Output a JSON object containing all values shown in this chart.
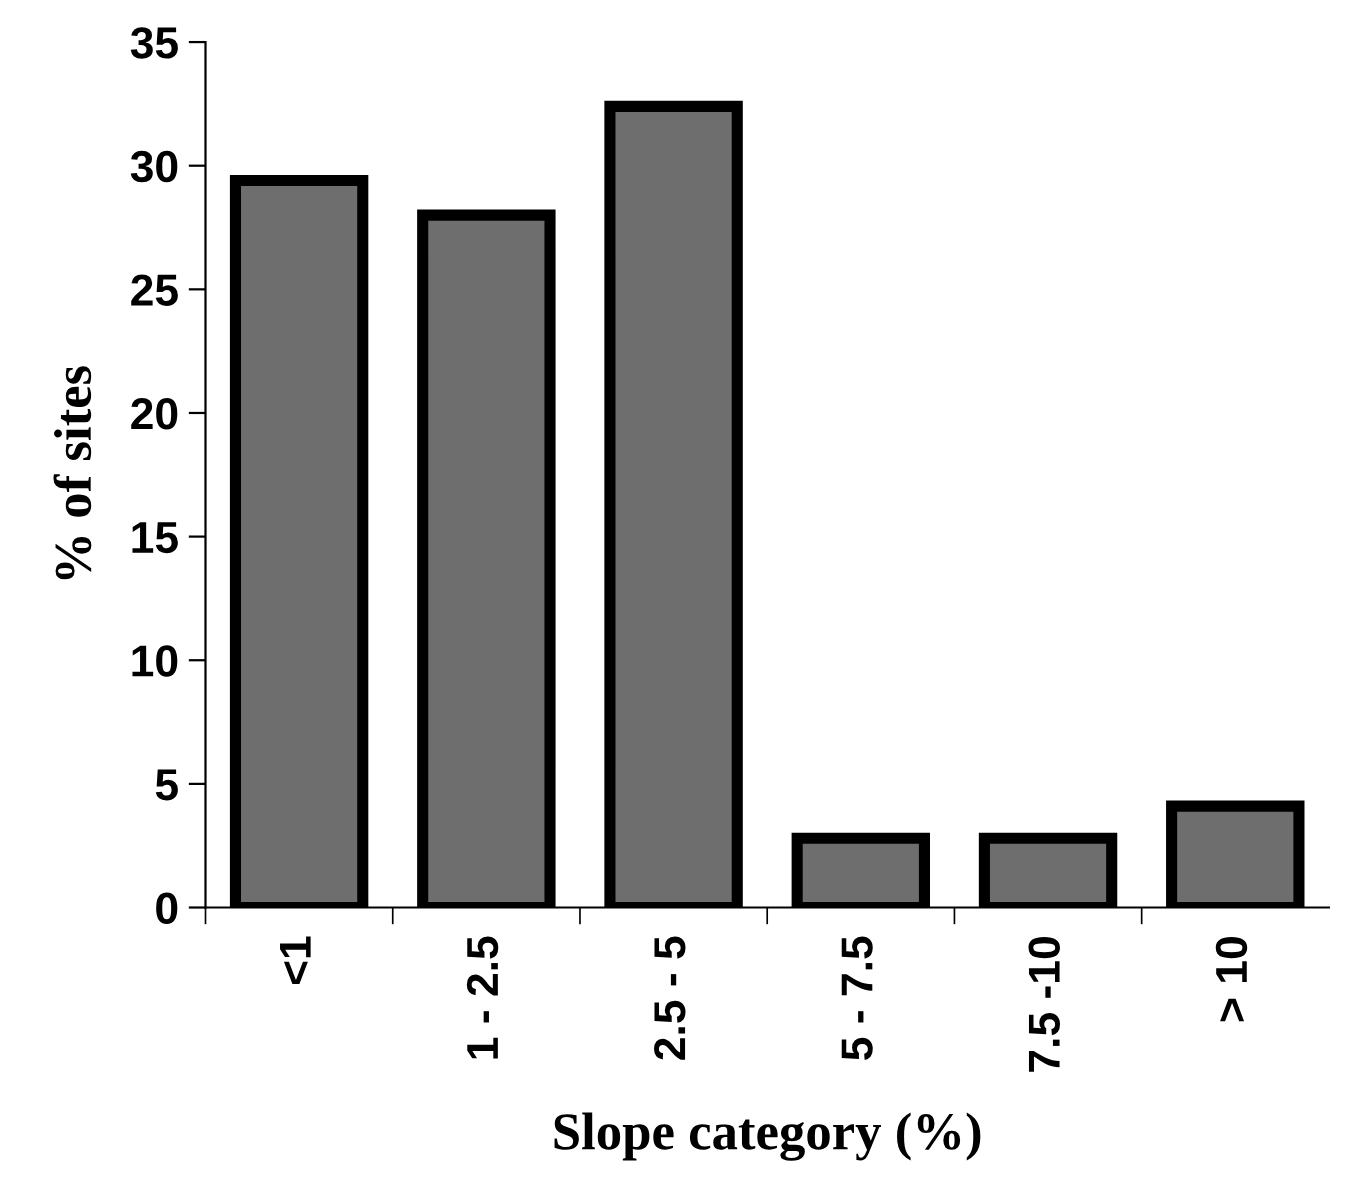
{
  "chart_data": {
    "type": "bar",
    "xlabel": "Slope category (%)",
    "ylabel": "% of sites",
    "categories": [
      "<1",
      "1 - 2.5",
      "2.5 - 5",
      "5 - 7.5",
      "7.5 -10",
      "> 10"
    ],
    "values": [
      29.4,
      28.0,
      32.4,
      2.8,
      2.8,
      4.1
    ],
    "color": "#6e6e6e",
    "ylim": [
      0,
      35
    ],
    "yticks": [
      0,
      5,
      10,
      15,
      20,
      25,
      30,
      35
    ],
    "grid": false,
    "legend": false
  }
}
